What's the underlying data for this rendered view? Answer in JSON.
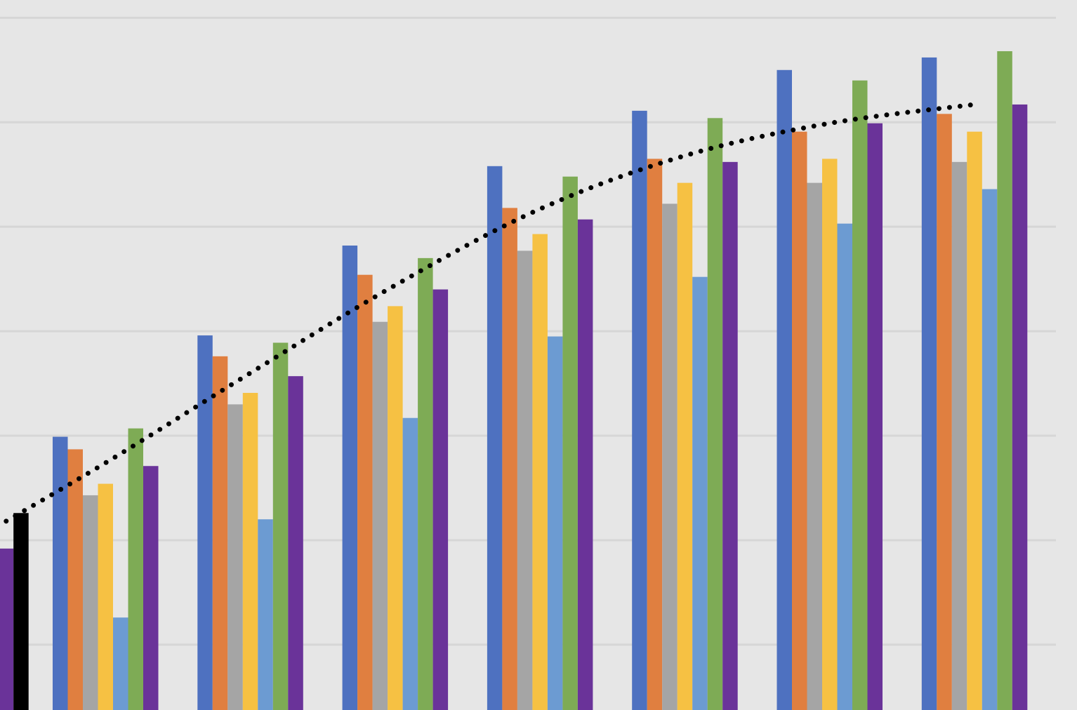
{
  "chart_data": {
    "type": "bar",
    "categories": [
      null,
      null,
      null,
      null,
      null,
      null,
      null,
      null
    ],
    "ylim": [
      0.375,
      7.17
    ],
    "yticks": [
      1,
      2,
      3,
      4,
      5,
      6,
      7
    ],
    "grid": true,
    "series": [
      {
        "color": "#4e71c0",
        "values": [
          null,
          2.99,
          3.96,
          4.82,
          5.58,
          6.11,
          6.5,
          6.62
        ]
      },
      {
        "color": "#e07f40",
        "values": [
          null,
          2.87,
          3.76,
          4.54,
          5.18,
          5.65,
          5.91,
          6.08
        ]
      },
      {
        "color": "#a5a5a5",
        "values": [
          null,
          2.43,
          3.3,
          4.09,
          4.77,
          5.22,
          5.42,
          5.62
        ]
      },
      {
        "color": "#f6c143",
        "values": [
          null,
          2.54,
          3.41,
          4.24,
          4.93,
          5.42,
          5.65,
          5.91
        ]
      },
      {
        "color": "#6c9bd2",
        "values": [
          null,
          1.26,
          2.2,
          3.17,
          3.95,
          4.52,
          5.03,
          5.36
        ]
      },
      {
        "color": "#7eab55",
        "values": [
          null,
          3.07,
          3.89,
          4.7,
          5.48,
          6.04,
          6.4,
          6.68
        ]
      },
      {
        "color": "#6a3399",
        "values": [
          1.92,
          2.71,
          3.57,
          4.4,
          5.07,
          5.62,
          5.99,
          6.17
        ]
      },
      {
        "color": "#000000",
        "values": [
          2.26,
          null,
          null,
          null,
          null,
          null,
          null,
          null
        ]
      }
    ],
    "trendline": {
      "color": "#000000",
      "style": "dotted",
      "values": [
        1.93,
        2.74,
        3.6,
        4.44,
        5.17,
        5.68,
        5.99,
        6.17
      ]
    }
  }
}
